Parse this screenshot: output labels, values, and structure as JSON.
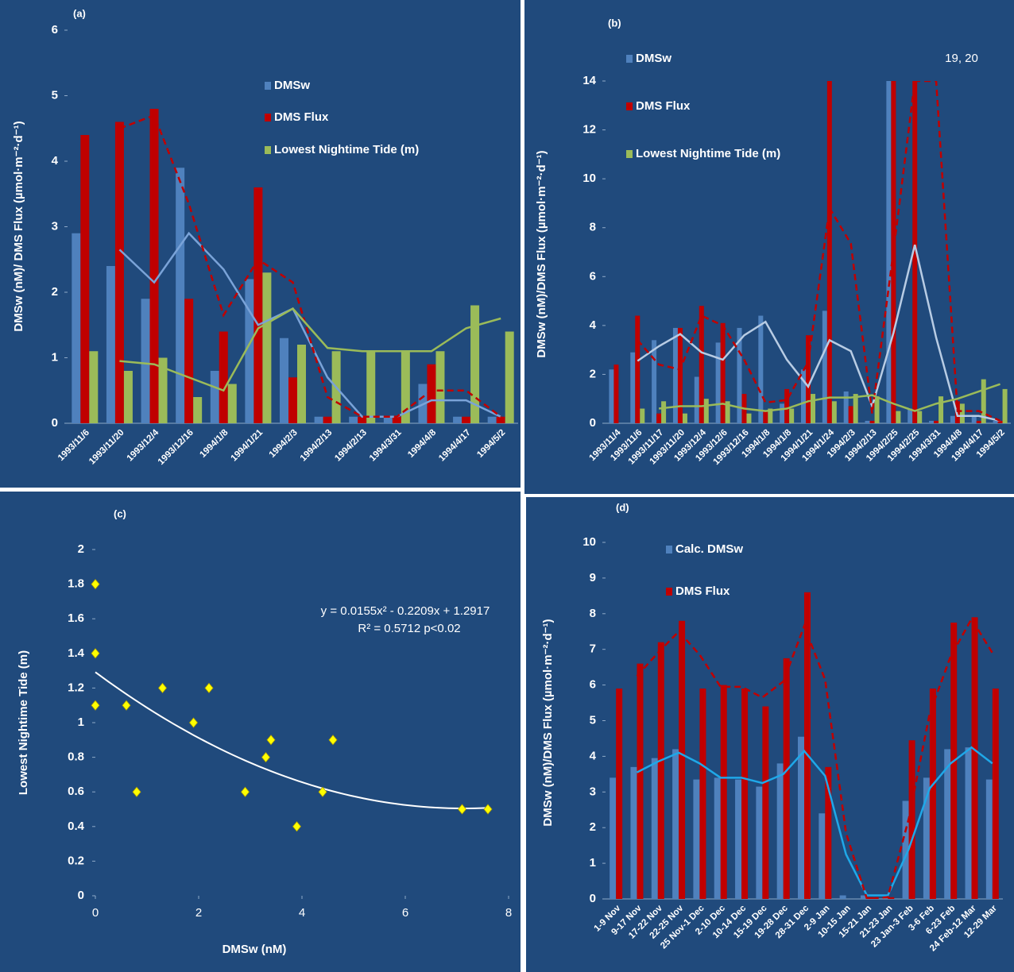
{
  "chart_data": [
    {
      "type": "bar",
      "panel_label": "(a)",
      "ylabel": "DMSw (nM)/ DMS Flux (µmol·m⁻²·d⁻¹)",
      "categories": [
        "1993/11/6",
        "1993/11/20",
        "1993/12/4",
        "1993/12/16",
        "1994/1/8",
        "1994/1/21",
        "1994/2/3",
        "1994/2/13",
        "1994/2/13",
        "1994/3/31",
        "1994/4/8",
        "1994/4/17",
        "1994/5/2"
      ],
      "series": [
        {
          "name": "DMSw",
          "color": "#4f81bd",
          "values": [
            2.9,
            2.4,
            1.9,
            3.9,
            0.8,
            2.2,
            1.3,
            0.1,
            0.1,
            0.1,
            0.6,
            0.1,
            0.1
          ]
        },
        {
          "name": "DMS Flux",
          "color": "#c00000",
          "values": [
            4.4,
            4.6,
            4.8,
            1.9,
            1.4,
            3.6,
            0.7,
            0.1,
            0.1,
            0.1,
            0.9,
            0.1,
            0.1
          ]
        },
        {
          "name": "Lowest Nightime Tide (m)",
          "color": "#9bbb59",
          "values": [
            1.1,
            0.8,
            1.0,
            0.4,
            0.6,
            2.3,
            1.2,
            1.1,
            1.1,
            1.1,
            1.1,
            1.8,
            1.4
          ]
        }
      ],
      "trendlines": [
        {
          "color": "#7aa3d8",
          "style": "solid",
          "values": [
            null,
            2.65,
            2.15,
            2.9,
            2.35,
            1.5,
            1.75,
            0.7,
            0.1,
            0.1,
            0.35,
            0.35,
            0.1
          ]
        },
        {
          "color": "#c00000",
          "style": "dashed",
          "values": [
            null,
            4.5,
            4.7,
            3.35,
            1.65,
            2.5,
            2.15,
            0.4,
            0.1,
            0.1,
            0.5,
            0.5,
            0.1
          ]
        },
        {
          "color": "#9bbb59",
          "style": "solid",
          "values": [
            null,
            0.95,
            0.9,
            0.7,
            0.5,
            1.45,
            1.75,
            1.15,
            1.1,
            1.1,
            1.1,
            1.45,
            1.6
          ]
        }
      ],
      "ylim": [
        0,
        6
      ],
      "yticks": [
        0,
        1,
        2,
        3,
        4,
        5,
        6
      ]
    },
    {
      "type": "bar",
      "panel_label": "(b)",
      "ylabel": "DMSw (nM)/DMS Flux (µmol·m⁻²·d⁻¹)",
      "annotation": "19, 20",
      "categories": [
        "1993/11/4",
        "1993/11/6",
        "1993/11/17",
        "1993/11/20",
        "1993/12/4",
        "1993/12/6",
        "1993/12/16",
        "1994/1/8",
        "1994/1/8",
        "1994/1/21",
        "1994/1/24",
        "1994/2/3",
        "1994/2/13",
        "1994/2/25",
        "1994/2/25",
        "1994/3/31",
        "1994/4/8",
        "1994/4/17",
        "1994/5/2"
      ],
      "series": [
        {
          "name": "DMSw",
          "color": "#4f81bd",
          "values": [
            2.2,
            2.9,
            3.4,
            3.9,
            1.9,
            3.3,
            3.9,
            4.4,
            0.8,
            2.2,
            4.6,
            1.3,
            0.1,
            14,
            0.6,
            0.1,
            0.3,
            0.3,
            0.1
          ]
        },
        {
          "name": "DMS Flux",
          "color": "#c00000",
          "values": [
            2.4,
            4.4,
            0.4,
            3.9,
            4.8,
            4.1,
            1.2,
            0.5,
            1.4,
            3.6,
            14,
            0.7,
            0.1,
            14,
            14,
            0.1,
            0.9,
            0.1,
            0.1
          ]
        },
        {
          "name": "Lowest Nightime Tide (m)",
          "color": "#9bbb59",
          "values": [
            null,
            0.6,
            0.9,
            0.4,
            1.0,
            0.9,
            0.4,
            0.6,
            0.6,
            1.2,
            0.9,
            1.2,
            1.1,
            0.5,
            0.5,
            1.1,
            0.8,
            1.8,
            1.4
          ]
        }
      ],
      "trendlines": [
        {
          "color": "#b8cce4",
          "style": "solid",
          "values": [
            null,
            2.55,
            3.15,
            3.65,
            2.9,
            2.6,
            3.6,
            4.15,
            2.6,
            1.5,
            3.4,
            2.95,
            0.7,
            3.7,
            7.3,
            3.5,
            0.3,
            0.3,
            0.1
          ]
        },
        {
          "color": "#c00000",
          "style": "dashed",
          "values": [
            null,
            3.4,
            2.4,
            2.2,
            4.4,
            4.0,
            2.6,
            0.85,
            0.95,
            2.5,
            8.8,
            7.35,
            0.4,
            7.05,
            14,
            14,
            0.5,
            0.5,
            0.1
          ]
        },
        {
          "color": "#9bbb59",
          "style": "solid",
          "values": [
            null,
            null,
            0.6,
            0.7,
            0.7,
            0.8,
            0.6,
            0.5,
            0.6,
            0.9,
            1.05,
            1.05,
            1.15,
            0.8,
            0.5,
            0.8,
            1.0,
            1.3,
            1.6
          ]
        }
      ],
      "ylim": [
        0,
        14
      ],
      "yticks": [
        0,
        2,
        4,
        6,
        8,
        10,
        12,
        14
      ]
    },
    {
      "type": "scatter",
      "panel_label": "(c)",
      "xlabel": "DMSw (nM)",
      "ylabel": "Lowest Nightime Tide (m)",
      "x": [
        0,
        0,
        0,
        0.6,
        0.8,
        1.3,
        1.9,
        2.2,
        2.9,
        3.3,
        3.4,
        3.9,
        4.4,
        4.6,
        7.1,
        7.6
      ],
      "values": [
        1.8,
        1.4,
        1.1,
        1.1,
        0.6,
        1.2,
        1.0,
        1.2,
        0.6,
        0.8,
        0.9,
        0.4,
        0.6,
        0.9,
        0.5,
        0.5
      ],
      "color": "#ffff00",
      "fit": {
        "coefficients": [
          0.0155,
          -0.2209,
          1.2917
        ],
        "equation": "y = 0.0155x² - 0.2209x + 1.2917",
        "r2": "R² = 0.5712 p<0.02"
      },
      "xlim": [
        0,
        8
      ],
      "xticks": [
        0,
        2,
        4,
        6,
        8
      ],
      "ylim": [
        0,
        2
      ],
      "yticks": [
        0,
        0.2,
        0.4,
        0.6,
        0.8,
        1,
        1.2,
        1.4,
        1.6,
        1.8,
        2
      ]
    },
    {
      "type": "bar",
      "panel_label": "(d)",
      "ylabel": "DMSw (nM)/DMS Flux (µmol·m⁻²·d⁻¹)",
      "categories": [
        "1-9 Nov",
        "9-17 Nov",
        "17-22 Nov",
        "22-25 Nov",
        "25 Nov-1 Dec",
        "2-10 Dec",
        "10-14 Dec",
        "15-19 Dec",
        "19-28 Dec",
        "28-31 Dec",
        "2-9 Jan",
        "10-15 Jan",
        "15-21 Jan",
        "21-23 Jan",
        "23 Jan-3 Feb",
        "3-6 Feb",
        "6-23 Feb",
        "24 Feb-12 Mar",
        "12-29 Mar"
      ],
      "series": [
        {
          "name": "Calc. DMSw",
          "color": "#4f81bd",
          "values": [
            3.4,
            3.7,
            3.95,
            4.2,
            3.35,
            3.4,
            3.35,
            3.15,
            3.8,
            4.55,
            2.4,
            0.1,
            0.1,
            0.0,
            2.75,
            3.4,
            4.2,
            4.25,
            3.35
          ]
        },
        {
          "name": "DMS Flux",
          "color": "#c00000",
          "values": [
            5.9,
            6.6,
            7.2,
            7.8,
            5.9,
            6.0,
            5.9,
            5.4,
            6.75,
            8.6,
            3.7,
            0.0,
            0.05,
            0.05,
            4.45,
            5.9,
            7.75,
            7.9,
            5.9
          ]
        }
      ],
      "trendlines": [
        {
          "color": "#1fa8e8",
          "style": "solid",
          "values": [
            null,
            3.55,
            3.85,
            4.1,
            3.8,
            3.4,
            3.4,
            3.25,
            3.5,
            4.15,
            3.45,
            1.25,
            0.1,
            0.1,
            1.4,
            3.1,
            3.8,
            4.25,
            3.8
          ]
        },
        {
          "color": "#c00000",
          "style": "dashed",
          "values": [
            null,
            6.25,
            6.9,
            7.5,
            6.85,
            5.95,
            5.95,
            5.65,
            6.1,
            7.65,
            6.15,
            1.85,
            0.0,
            0.05,
            2.25,
            5.2,
            6.8,
            7.85,
            6.9
          ]
        }
      ],
      "ylim": [
        0,
        10
      ],
      "yticks": [
        0,
        1,
        2,
        3,
        4,
        5,
        6,
        7,
        8,
        9,
        10
      ]
    }
  ]
}
